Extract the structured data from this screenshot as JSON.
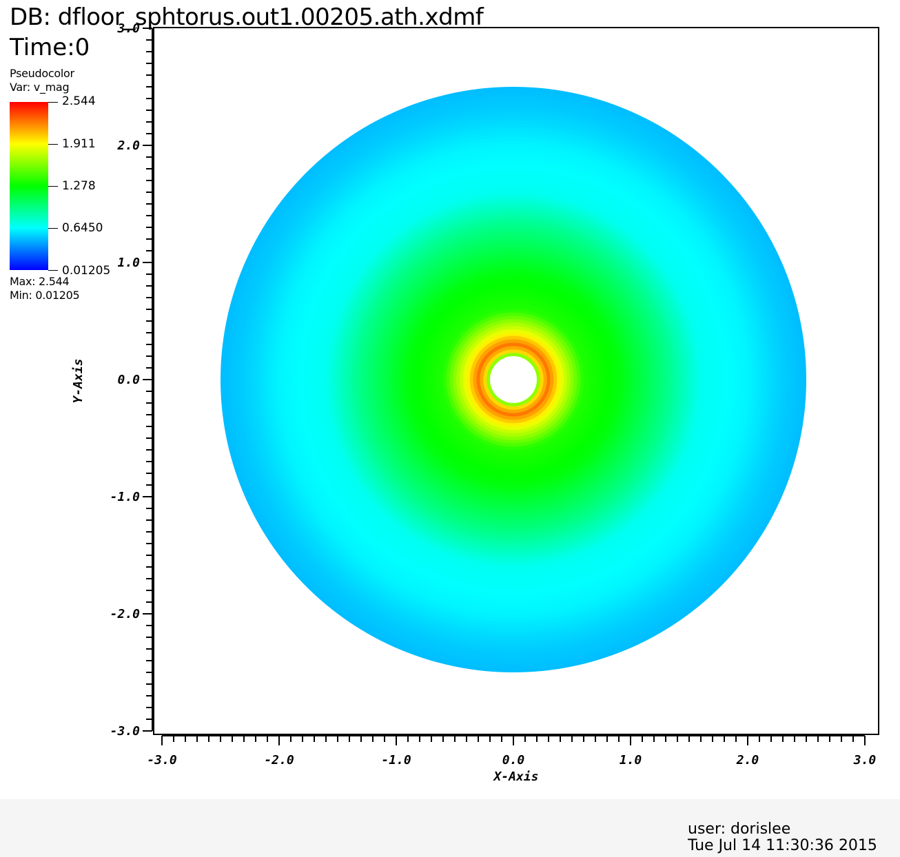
{
  "header": {
    "title": "DB: dfloor_sphtorus.out1.00205.ath.xdmf",
    "time": "Time:0"
  },
  "legend": {
    "plot_type": "Pseudocolor",
    "variable": "Var: v_mag",
    "ticks": [
      "2.544",
      "1.911",
      "1.278",
      "0.6450",
      "0.01205"
    ],
    "max_label": "Max:  2.544",
    "min_label": "Min:  0.01205",
    "colors": [
      "#0000ff",
      "#00ffff",
      "#00ff00",
      "#ffff00",
      "#ff0000"
    ]
  },
  "footer": {
    "user": "user: dorislee",
    "timestamp": "Tue Jul 14 11:30:36 2015"
  },
  "chart_data": {
    "type": "heatmap",
    "title": "DB: dfloor_sphtorus.out1.00205.ath.xdmf",
    "xlabel": "X-Axis",
    "ylabel": "Y-Axis",
    "xlim": [
      -3.0,
      3.0
    ],
    "ylim": [
      -3.0,
      3.0
    ],
    "x_ticks": [
      "-3.0",
      "-2.0",
      "-1.0",
      "0.0",
      "1.0",
      "2.0",
      "3.0"
    ],
    "y_ticks": [
      "3.0",
      "2.0",
      "1.0",
      "0.0",
      "-1.0",
      "-2.0",
      "-3.0"
    ],
    "field": "v_mag",
    "value_range": [
      0.01205,
      2.544
    ],
    "domain": {
      "shape": "annulus",
      "center": [
        0.0,
        0.0
      ],
      "inner_radius": 0.2,
      "outer_radius": 2.5
    },
    "radial_profile": {
      "radius": [
        0.2,
        0.23,
        0.3,
        0.4,
        0.6,
        0.9,
        1.3,
        1.6,
        2.0,
        2.3,
        2.5
      ],
      "value": [
        1.35,
        1.95,
        2.25,
        1.9,
        1.35,
        1.25,
        0.95,
        0.68,
        0.62,
        0.52,
        0.48
      ]
    },
    "grid": false,
    "legend_position": "top-left"
  }
}
